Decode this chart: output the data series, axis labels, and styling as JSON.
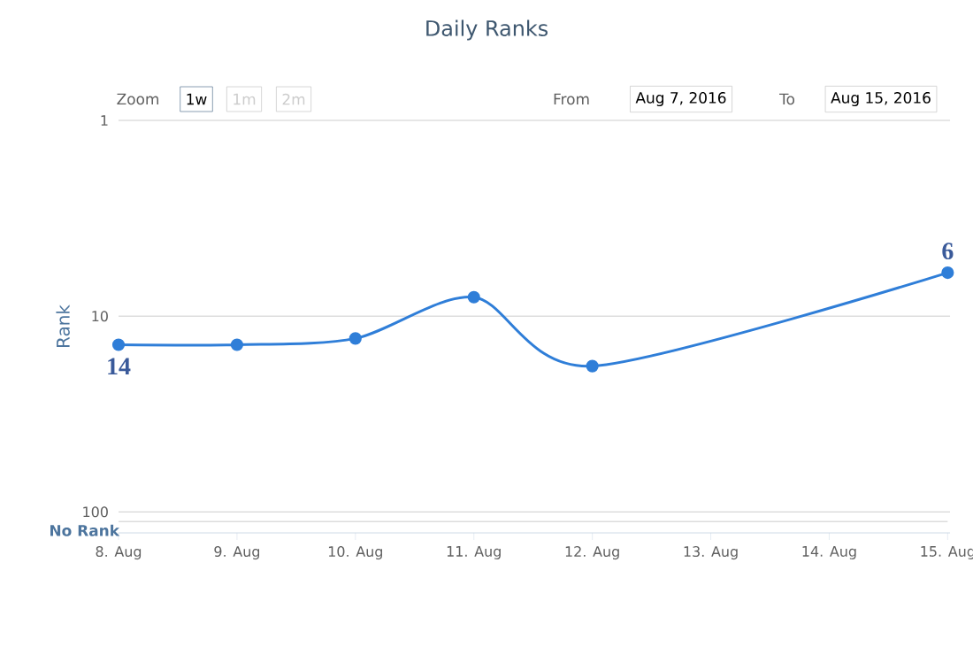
{
  "chart_data": {
    "type": "line",
    "title": "Daily Ranks",
    "ylabel": "Rank",
    "x": [
      "2016-08-08",
      "2016-08-09",
      "2016-08-10",
      "2016-08-11",
      "2016-08-12",
      "2016-08-15"
    ],
    "series": [
      {
        "color": "#2f7ed8",
        "values": [
          14,
          14,
          13,
          8,
          18,
          6
        ],
        "value_labels": [
          "14",
          null,
          null,
          null,
          null,
          "6"
        ]
      }
    ],
    "xlim": [
      "2016-08-08",
      "2016-08-15"
    ],
    "xticks": [
      {
        "value": "2016-08-08",
        "label": "8. Aug"
      },
      {
        "value": "2016-08-09",
        "label": "9. Aug"
      },
      {
        "value": "2016-08-10",
        "label": "10. Aug"
      },
      {
        "value": "2016-08-11",
        "label": "11. Aug"
      },
      {
        "value": "2016-08-12",
        "label": "12. Aug"
      },
      {
        "value": "2016-08-13",
        "label": "13. Aug"
      },
      {
        "value": "2016-08-14",
        "label": "14. Aug"
      },
      {
        "value": "2016-08-15",
        "label": "15. Aug"
      }
    ],
    "ylim": [
      128,
      1
    ],
    "yticks": [
      1,
      10,
      100
    ],
    "log": "y",
    "grid": "y",
    "marker": "circle",
    "line_style": "solid",
    "ref_lines": [
      {
        "axis": "y",
        "value": 112,
        "label": "No Rank",
        "color": "#c0c0c0"
      }
    ],
    "annotations": [
      "Zoom",
      "1w",
      "1m",
      "2m",
      "From",
      "Aug 7, 2016",
      "To",
      "Aug 15, 2016"
    ]
  }
}
